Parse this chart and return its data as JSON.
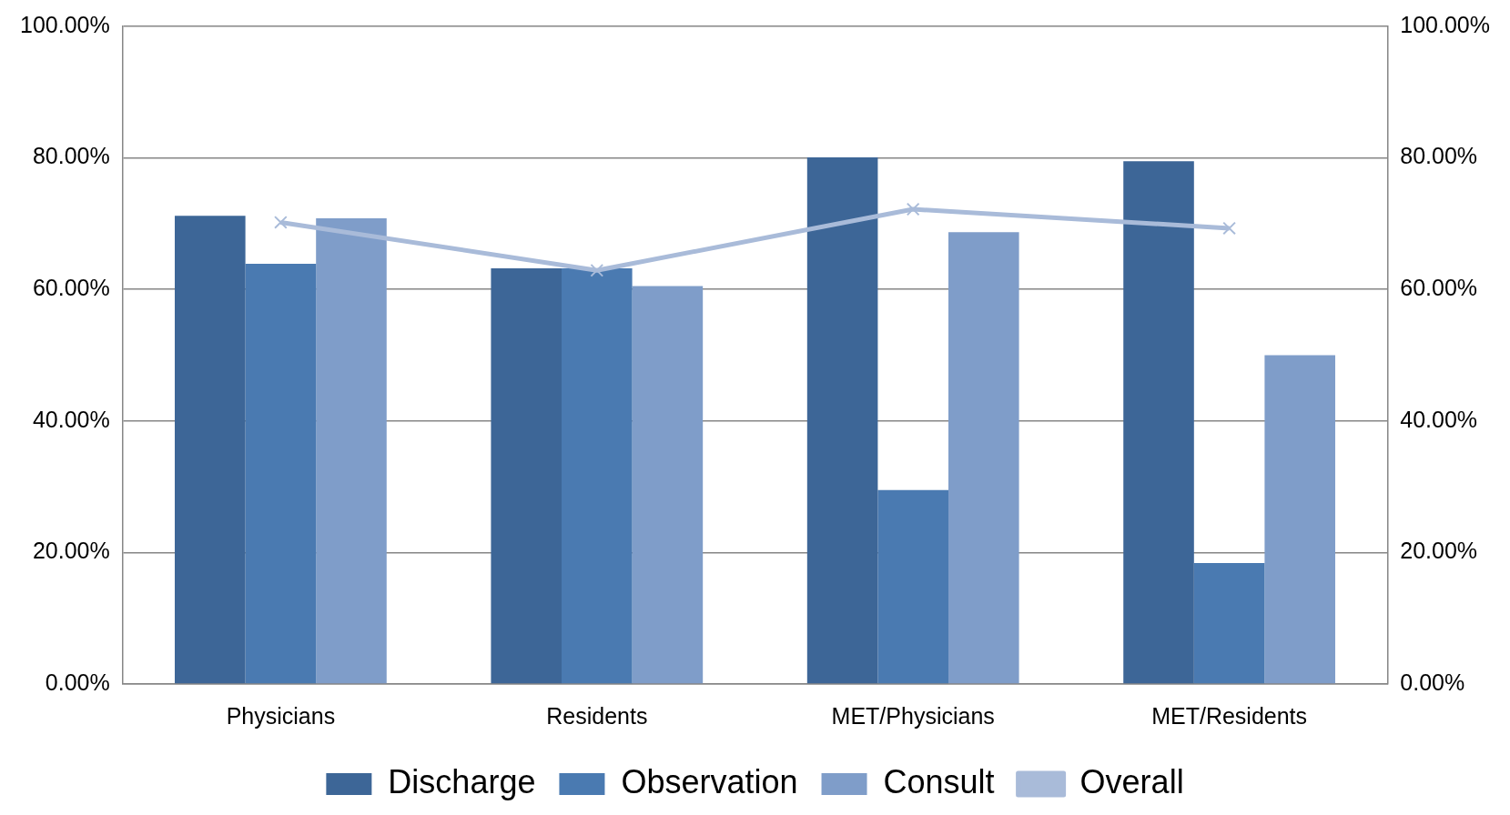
{
  "chart_data": {
    "type": "bar",
    "categories": [
      "Physicians",
      "Residents",
      "MET/Physicians",
      "MET/Residents"
    ],
    "series": [
      {
        "name": "Discharge",
        "color": "#3d6697",
        "values": [
          71.2,
          63.2,
          80.1,
          79.5
        ]
      },
      {
        "name": "Observation",
        "color": "#4a7ab1",
        "values": [
          63.9,
          63.2,
          29.5,
          18.4
        ]
      },
      {
        "name": "Consult",
        "color": "#7f9dc9",
        "values": [
          70.8,
          60.5,
          68.7,
          50.0
        ]
      },
      {
        "name": "Overall",
        "type": "line",
        "color": "#a9bbd9",
        "marker": "cross",
        "values": [
          70.2,
          62.9,
          72.2,
          69.3
        ]
      }
    ],
    "ylim": [
      0,
      100
    ],
    "yticks": [
      {
        "value": 0,
        "label": "0.00%"
      },
      {
        "value": 20,
        "label": "20.00%"
      },
      {
        "value": 40,
        "label": "40.00%"
      },
      {
        "value": 60,
        "label": "60.00%"
      },
      {
        "value": 80,
        "label": "80.00%"
      },
      {
        "value": 100,
        "label": "100.00%"
      }
    ],
    "y2lim": [
      0,
      100
    ],
    "y2ticks": [
      {
        "value": 0,
        "label": "0.00%"
      },
      {
        "value": 20,
        "label": "20.00%"
      },
      {
        "value": 40,
        "label": "40.00%"
      },
      {
        "value": 60,
        "label": "60.00%"
      },
      {
        "value": 80,
        "label": "80.00%"
      },
      {
        "value": 100,
        "label": "100.00%"
      }
    ],
    "grid": "y",
    "legend": "bottom"
  }
}
